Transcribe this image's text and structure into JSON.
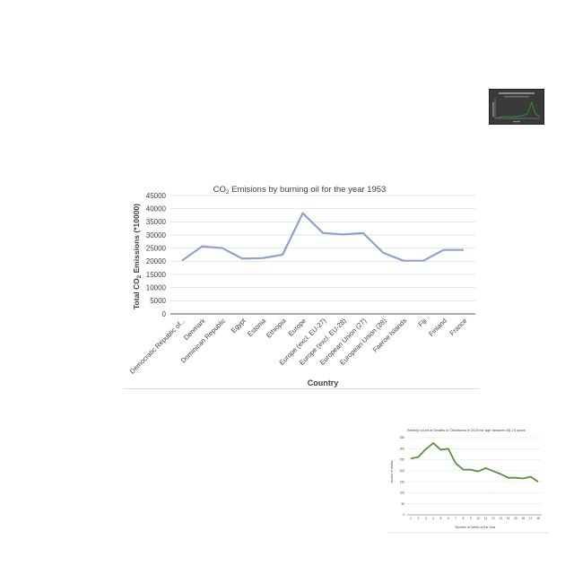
{
  "chart_data": [
    {
      "type": "line",
      "title_parts": {
        "prefix": "CO",
        "sub": "2",
        "suffix": " Emisions by burning oil for the year 1953"
      },
      "xlabel": "Country",
      "ylabel_parts": {
        "prefix": "Total CO",
        "sub": "2",
        "suffix": " Emissions (*10000)"
      },
      "categories": [
        "Democratic Republic of...",
        "Denmark",
        "Dominican Republic",
        "Egypt",
        "Estonia",
        "Ethiopia",
        "Europe",
        "Europe (excl. EU-27)",
        "Europe (excl. EU-28)",
        "European Union (27)",
        "European Union (28)",
        "Faeroe Islands",
        "Fiji",
        "Finland",
        "France"
      ],
      "values": [
        20300,
        25700,
        25000,
        21000,
        21200,
        22500,
        38300,
        30800,
        30200,
        30700,
        23200,
        20200,
        20200,
        24300,
        24300
      ],
      "yticks": [
        "0",
        "5000",
        "10000",
        "15000",
        "20000",
        "25000",
        "30000",
        "35000",
        "40000",
        "45000"
      ],
      "ylim": [
        0,
        45000
      ],
      "grid": true,
      "color": "#8ea1d0"
    },
    {
      "type": "line",
      "title": "Weekly count of Deaths in Oklahoma in 2020 for age between 65-74 years",
      "xlabel": "Number of Week of the Year",
      "ylabel": "number of deaths",
      "x": [
        "1",
        "2",
        "3",
        "4",
        "5",
        "6",
        "7",
        "8",
        "9",
        "10",
        "11",
        "12",
        "13",
        "14",
        "15",
        "16",
        "17",
        "18"
      ],
      "values": [
        255,
        262,
        298,
        325,
        295,
        300,
        233,
        205,
        205,
        197,
        212,
        198,
        185,
        168,
        168,
        165,
        173,
        150
      ],
      "yticks": [
        "0",
        "50",
        "100",
        "150",
        "200",
        "250",
        "300",
        "350"
      ],
      "ylim": [
        0,
        350
      ],
      "grid": true,
      "color": "#5c8f3c"
    }
  ],
  "thumbnail": {
    "description_color": "#3a3a3a",
    "line_color": "#2f8f2f"
  }
}
